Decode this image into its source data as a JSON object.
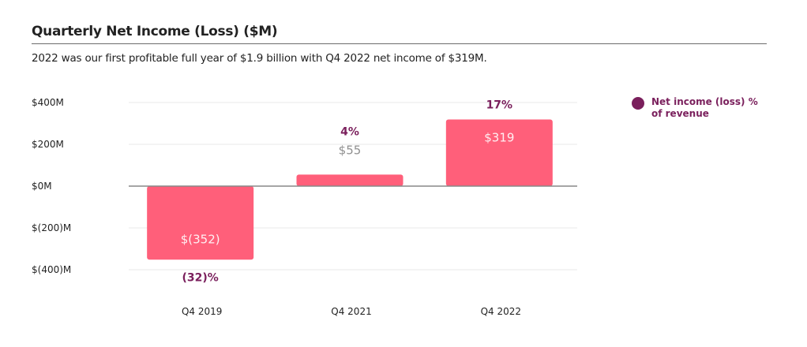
{
  "header": {
    "title": "Quarterly Net Income (Loss) ($M)",
    "subtitle": "2022 was our first profitable full year of $1.9 billion with Q4 2022 net income of $319M."
  },
  "legend": {
    "label": "Net income (loss) % of revenue",
    "color": "#7a1f5c"
  },
  "chart_data": {
    "type": "bar",
    "title": "Quarterly Net Income (Loss) ($M)",
    "xlabel": "",
    "ylabel": "",
    "categories": [
      "Q4 2019",
      "Q4 2021",
      "Q4 2022"
    ],
    "values": [
      -352,
      55,
      319
    ],
    "value_labels": [
      "$(352)",
      "$55",
      "$319"
    ],
    "percent_of_revenue": [
      -32,
      4,
      17
    ],
    "percent_labels": [
      "(32)%",
      "4%",
      "17%"
    ],
    "yticks": [
      400,
      200,
      0,
      -200,
      -400
    ],
    "ytick_labels": [
      "$400M",
      "$200M",
      "$0M",
      "$(200)M",
      "$(400)M"
    ],
    "ylim": [
      -400,
      400
    ],
    "grid": true,
    "legend_position": "top-right",
    "bar_color": "#ff5f7a",
    "percent_color": "#7a1f5c"
  }
}
